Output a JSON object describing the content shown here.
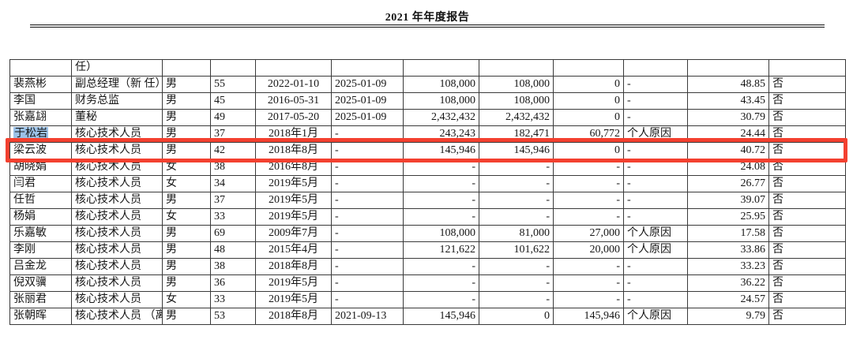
{
  "header": {
    "title": "2021 年年度报告"
  },
  "annotations": {
    "selection_color": "#9cc2e8",
    "red_box_color": "#f3402f",
    "selected_text": "于松岩"
  },
  "table": {
    "column_keys": [
      "name",
      "position",
      "gender",
      "age",
      "start_date",
      "end_date",
      "shares_begin",
      "shares_end",
      "shares_change",
      "change_reason",
      "remuneration",
      "flag"
    ],
    "rows": [
      {
        "cells": [
          "",
          "任）",
          "",
          "",
          "",
          "",
          "",
          "",
          "",
          "",
          "",
          ""
        ]
      },
      {
        "cells": [
          "裴燕彬",
          "副总经理（新\n任）",
          "男",
          "55",
          "2022-01-10",
          "2025-01-09",
          "108,000",
          "108,000",
          "0",
          "-",
          "48.85",
          "否"
        ]
      },
      {
        "cells": [
          "李国",
          "财务总监",
          "男",
          "45",
          "2016-05-31",
          "2025-01-09",
          "108,000",
          "108,000",
          "0",
          "-",
          "43.45",
          "否"
        ]
      },
      {
        "cells": [
          "张嘉翃",
          "董秘",
          "男",
          "49",
          "2017-05-20",
          "2025-01-09",
          "2,432,432",
          "2,432,432",
          "0",
          "-",
          "30.79",
          "否"
        ]
      },
      {
        "cells": [
          "于松岩",
          "核心技术人员",
          "男",
          "37",
          "2018年1月",
          "-",
          "243,243",
          "182,471",
          "60,772",
          "个人原因",
          "24.44",
          "否"
        ],
        "selected_name": true,
        "annotated": true
      },
      {
        "cells": [
          "梁云波",
          "核心技术人员",
          "男",
          "42",
          "2018年8月",
          "-",
          "145,946",
          "145,946",
          "0",
          "-",
          "40.72",
          "否"
        ]
      },
      {
        "cells": [
          "胡晓娟",
          "核心技术人员",
          "女",
          "38",
          "2016年8月",
          "-",
          "-",
          "-",
          "-",
          "-",
          "24.08",
          "否"
        ]
      },
      {
        "cells": [
          "闫君",
          "核心技术人员",
          "女",
          "34",
          "2019年5月",
          "-",
          "-",
          "-",
          "-",
          "-",
          "26.77",
          "否"
        ]
      },
      {
        "cells": [
          "任哲",
          "核心技术人员",
          "男",
          "37",
          "2019年5月",
          "-",
          "-",
          "-",
          "-",
          "-",
          "39.07",
          "否"
        ]
      },
      {
        "cells": [
          "杨娟",
          "核心技术人员",
          "女",
          "33",
          "2019年5月",
          "-",
          "-",
          "-",
          "-",
          "-",
          "25.95",
          "否"
        ]
      },
      {
        "cells": [
          "乐嘉敏",
          "核心技术人员",
          "男",
          "69",
          "2009年7月",
          "-",
          "108,000",
          "81,000",
          "27,000",
          "个人原因",
          "17.58",
          "否"
        ]
      },
      {
        "cells": [
          "李刚",
          "核心技术人员",
          "男",
          "48",
          "2015年4月",
          "-",
          "121,622",
          "101,622",
          "20,000",
          "个人原因",
          "33.86",
          "否"
        ]
      },
      {
        "cells": [
          "吕金龙",
          "核心技术人员",
          "男",
          "38",
          "2018年8月",
          "-",
          "-",
          "-",
          "-",
          "-",
          "33.23",
          "否"
        ]
      },
      {
        "cells": [
          "倪双骥",
          "核心技术人员",
          "男",
          "36",
          "2019年5月",
          "-",
          "-",
          "-",
          "-",
          "-",
          "36.22",
          "否"
        ]
      },
      {
        "cells": [
          "张丽君",
          "核心技术人员",
          "女",
          "33",
          "2019年5月",
          "-",
          "-",
          "-",
          "-",
          "-",
          "24.57",
          "否"
        ]
      },
      {
        "cells": [
          "张朝晖",
          "核心技术人员\n（离职）",
          "男",
          "53",
          "2018年8月",
          "2021-09-13",
          "145,946",
          "0",
          "145,946",
          "个人原因",
          "9.79",
          "否"
        ]
      }
    ]
  }
}
